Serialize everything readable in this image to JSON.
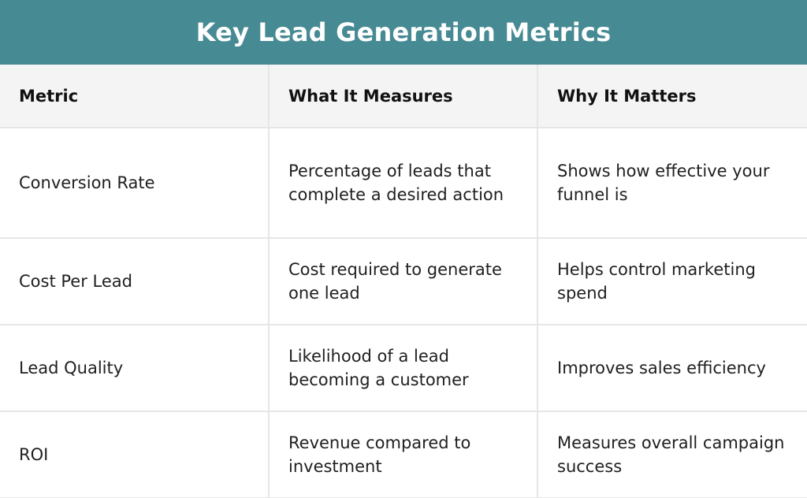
{
  "title": "Key Lead Generation Metrics",
  "columns": [
    "Metric",
    "What It Measures",
    "Why It Matters"
  ],
  "rows": [
    {
      "metric": "Conversion Rate",
      "measures": "Percentage of leads that complete a desired action",
      "matters": "Shows how effective your funnel is"
    },
    {
      "metric": "Cost Per Lead",
      "measures": "Cost required to generate one lead",
      "matters": "Helps control marketing spend"
    },
    {
      "metric": "Lead Quality",
      "measures": "Likelihood of a lead becoming a customer",
      "matters": "Improves sales efficiency"
    },
    {
      "metric": "ROI",
      "measures": "Revenue compared to investment",
      "matters": "Measures overall campaign success"
    }
  ],
  "colors": {
    "header_bar": "#468a93",
    "title_text": "#ffffff",
    "column_header_bg": "#f4f4f4",
    "grid_line": "#e6e6e6"
  }
}
